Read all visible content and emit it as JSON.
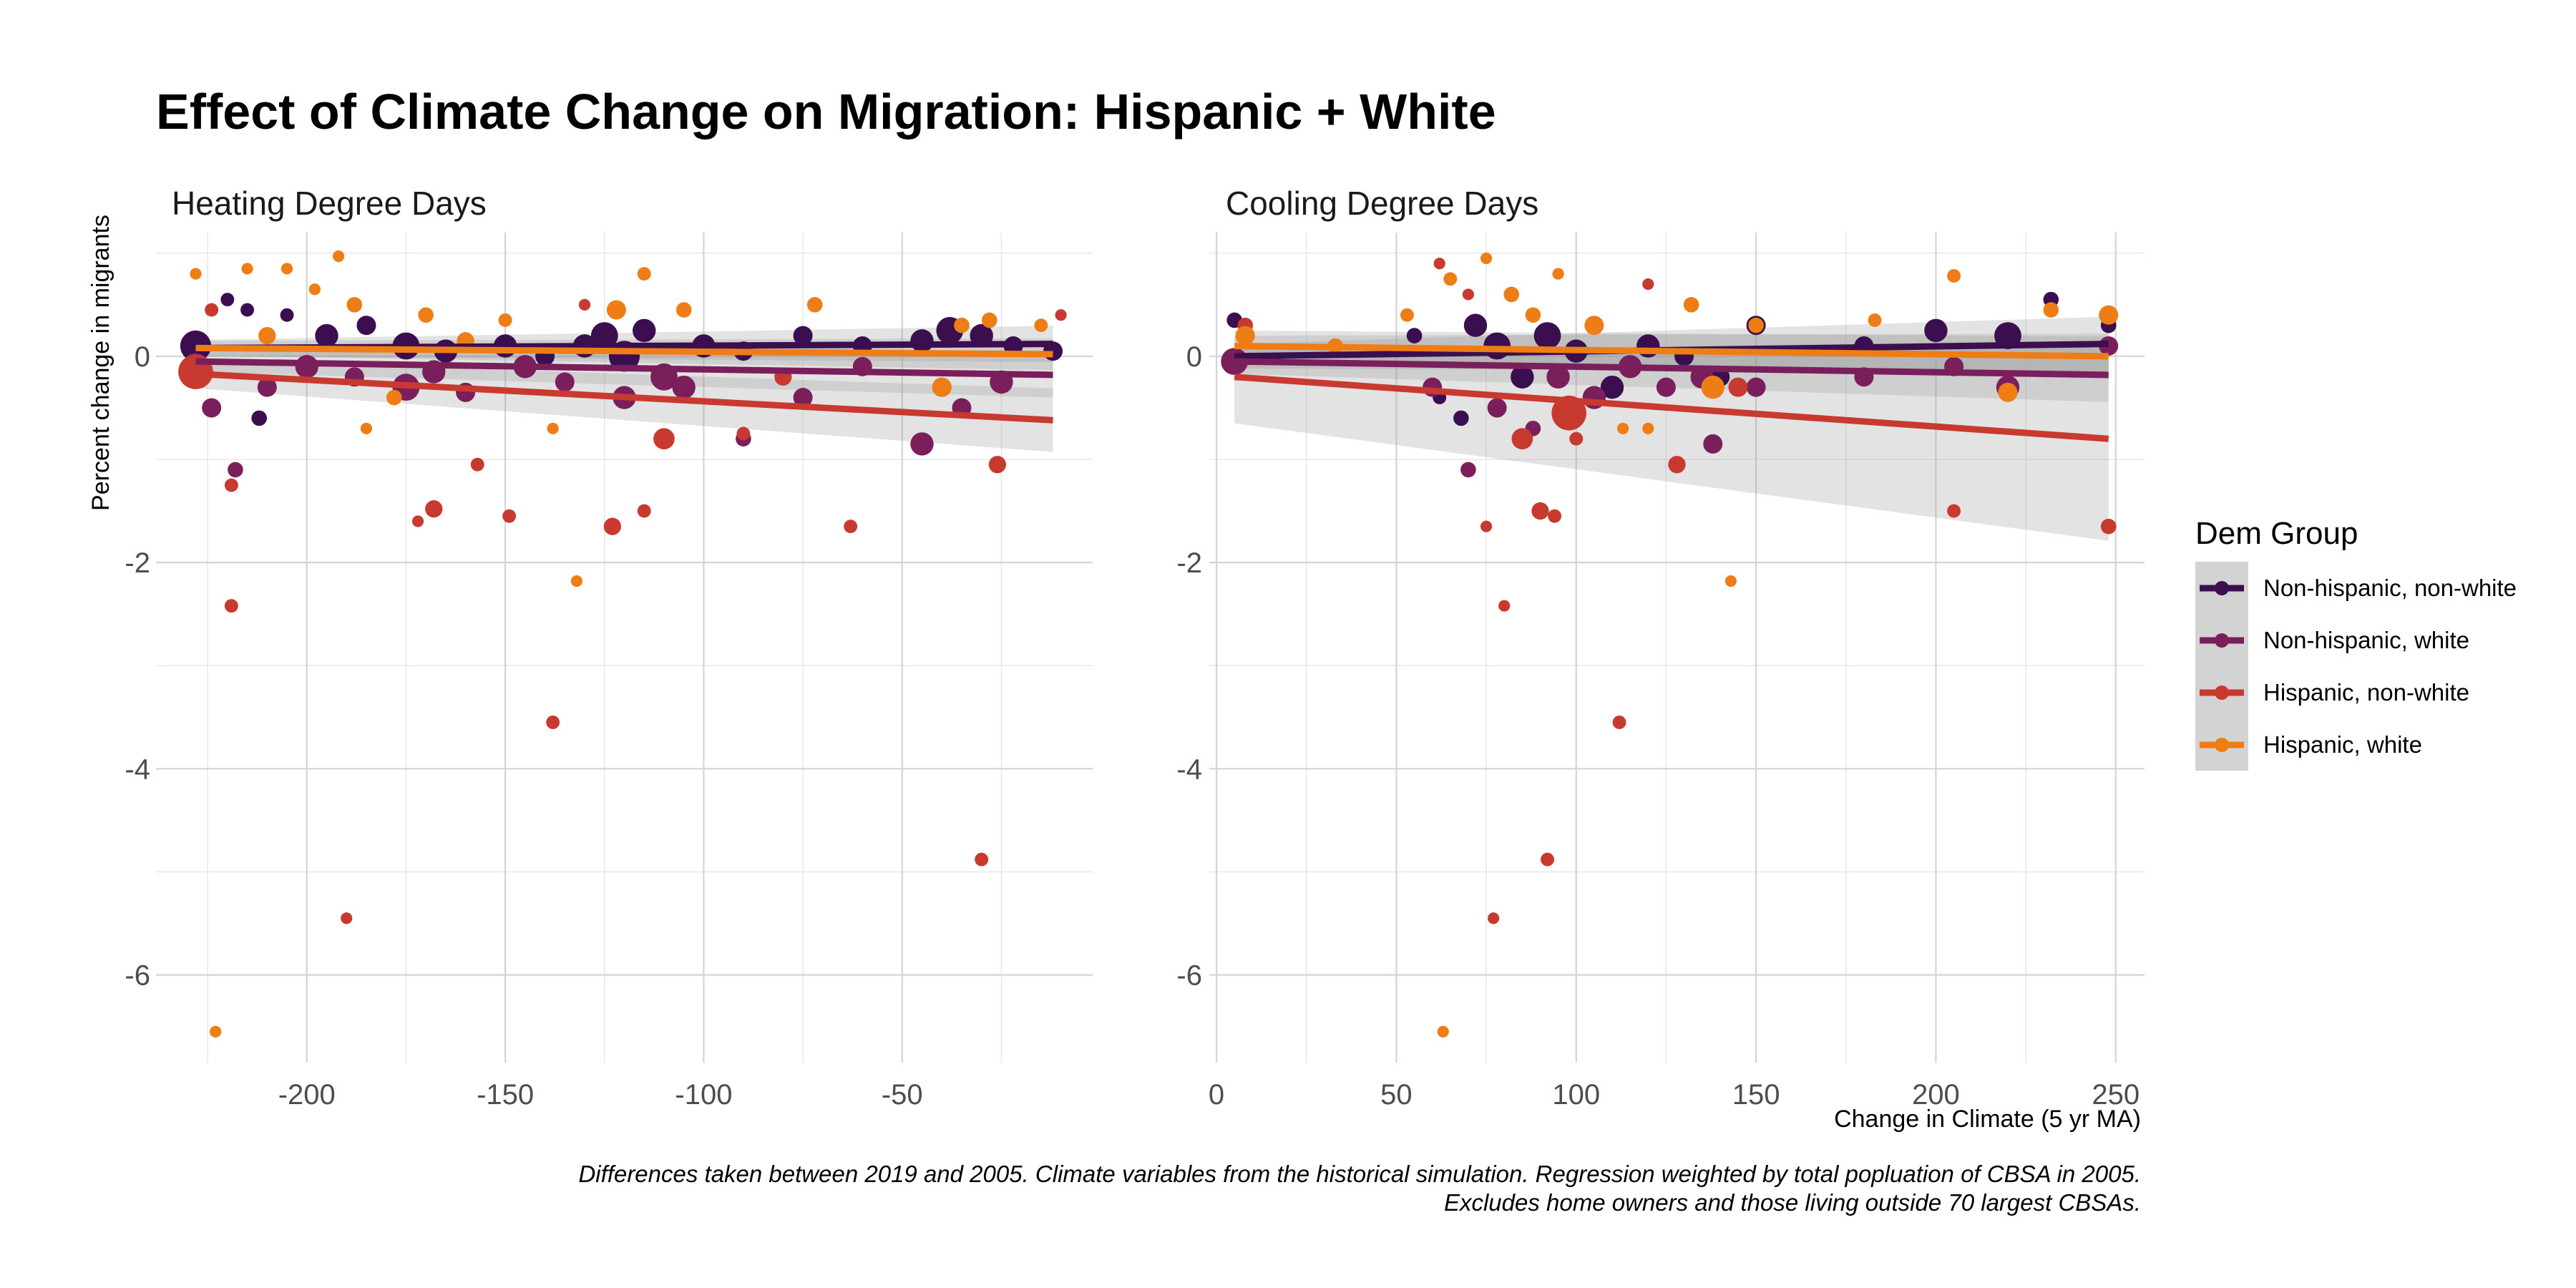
{
  "title": "Effect of Climate Change on Migration: Hispanic + White",
  "caption_lines": [
    "Differences taken between 2019 and 2005. Climate variables from the historical simulation. Regression weighted by total popluation of CBSA in 2005.",
    "Excludes home owners and those living outside 70 largest CBSAs."
  ],
  "y_axis_title": "Percent change in migrants",
  "x_axis_title": "Change in Climate (5 yr MA)",
  "legend": {
    "title": "Dem Group",
    "position": "right",
    "items": [
      {
        "label": "Non-hispanic, non-white",
        "color": "#3b0f4f"
      },
      {
        "label": "Non-hispanic, white",
        "color": "#7a1f5c"
      },
      {
        "label": "Hispanic, non-white",
        "color": "#c8392f"
      },
      {
        "label": "Hispanic, white",
        "color": "#ef7d16"
      }
    ]
  },
  "chart_data": [
    {
      "type": "scatter",
      "facet_title": "Heating Degree Days",
      "xlim": [
        -238,
        -2
      ],
      "ylim": [
        -6.85,
        1.2
      ],
      "x_ticks": [
        -200,
        -150,
        -100,
        -50
      ],
      "x_tick_labels": [
        "-200",
        "-150",
        "-100",
        "-50"
      ],
      "y_ticks": [
        0,
        -2,
        -4,
        -6
      ],
      "y_tick_labels": [
        "0",
        "-2",
        "-4",
        "-6"
      ],
      "grid": true,
      "series": [
        {
          "name": "Non-hispanic, non-white",
          "color": "#3b0f4f",
          "fit": {
            "x": [
              -228,
              -12
            ],
            "y": [
              0.08,
              0.12
            ],
            "band": 0.08
          },
          "points": [
            [
              -228,
              0.1,
              16
            ],
            [
              -220,
              0.55,
              7
            ],
            [
              -215,
              0.45,
              7
            ],
            [
              -212,
              -0.6,
              8
            ],
            [
              -205,
              0.4,
              7
            ],
            [
              -195,
              0.2,
              12
            ],
            [
              -185,
              0.3,
              10
            ],
            [
              -175,
              0.1,
              14
            ],
            [
              -165,
              0.05,
              12
            ],
            [
              -150,
              0.1,
              12
            ],
            [
              -140,
              0.0,
              10
            ],
            [
              -125,
              0.2,
              14
            ],
            [
              -115,
              0.25,
              12
            ],
            [
              -100,
              0.1,
              12
            ],
            [
              -90,
              0.05,
              10
            ],
            [
              -75,
              0.2,
              10
            ],
            [
              -60,
              0.1,
              10
            ],
            [
              -45,
              0.15,
              12
            ],
            [
              -38,
              0.25,
              14
            ],
            [
              -30,
              0.2,
              12
            ],
            [
              -22,
              0.1,
              10
            ],
            [
              -12,
              0.05,
              10
            ],
            [
              -120,
              0.0,
              16
            ],
            [
              -130,
              0.1,
              12
            ]
          ]
        },
        {
          "name": "Non-hispanic, white",
          "color": "#7a1f5c",
          "fit": {
            "x": [
              -228,
              -12
            ],
            "y": [
              -0.05,
              -0.18
            ],
            "band": 0.1
          },
          "points": [
            [
              -228,
              -0.1,
              14
            ],
            [
              -224,
              -0.5,
              10
            ],
            [
              -218,
              -1.1,
              8
            ],
            [
              -210,
              -0.3,
              10
            ],
            [
              -200,
              -0.1,
              12
            ],
            [
              -188,
              -0.2,
              10
            ],
            [
              -175,
              -0.3,
              14
            ],
            [
              -160,
              -0.35,
              10
            ],
            [
              -145,
              -0.1,
              12
            ],
            [
              -135,
              -0.25,
              10
            ],
            [
              -120,
              -0.4,
              12
            ],
            [
              -105,
              -0.3,
              12
            ],
            [
              -90,
              -0.8,
              8
            ],
            [
              -75,
              -0.4,
              10
            ],
            [
              -60,
              -0.1,
              10
            ],
            [
              -45,
              -0.85,
              12
            ],
            [
              -35,
              -0.5,
              10
            ],
            [
              -25,
              -0.25,
              12
            ],
            [
              -168,
              -0.15,
              12
            ],
            [
              -110,
              -0.2,
              14
            ]
          ]
        },
        {
          "name": "Hispanic, non-white",
          "color": "#c8392f",
          "fit": {
            "x": [
              -228,
              -12
            ],
            "y": [
              -0.17,
              -0.62
            ],
            "band": 0.14
          },
          "points": [
            [
              -228,
              -0.15,
              18
            ],
            [
              -224,
              0.45,
              7
            ],
            [
              -219,
              -1.25,
              7
            ],
            [
              -219,
              -2.42,
              7
            ],
            [
              -190,
              -5.45,
              6
            ],
            [
              -172,
              -1.6,
              6
            ],
            [
              -168,
              -1.48,
              9
            ],
            [
              -157,
              -1.05,
              7
            ],
            [
              -149,
              -1.55,
              7
            ],
            [
              -138,
              -3.55,
              7
            ],
            [
              -123,
              -1.65,
              9
            ],
            [
              -115,
              -1.5,
              7
            ],
            [
              -110,
              -0.8,
              11
            ],
            [
              -90,
              -0.75,
              7
            ],
            [
              -63,
              -1.65,
              7
            ],
            [
              -30,
              -4.88,
              7
            ],
            [
              -26,
              -1.05,
              9
            ],
            [
              -10,
              0.4,
              6
            ],
            [
              -40,
              -0.3,
              10
            ],
            [
              -80,
              -0.2,
              9
            ],
            [
              -130,
              0.5,
              6
            ]
          ]
        },
        {
          "name": "Hispanic, white",
          "color": "#ef7d16",
          "fit": {
            "x": [
              -228,
              -12
            ],
            "y": [
              0.08,
              0.02
            ],
            "band": 0.07
          },
          "points": [
            [
              -228,
              0.8,
              6
            ],
            [
              -223,
              -6.55,
              6
            ],
            [
              -215,
              0.85,
              6
            ],
            [
              -205,
              0.85,
              6
            ],
            [
              -198,
              0.65,
              6
            ],
            [
              -192,
              0.97,
              6
            ],
            [
              -188,
              0.5,
              8
            ],
            [
              -185,
              -0.7,
              6
            ],
            [
              -178,
              -0.4,
              8
            ],
            [
              -170,
              0.4,
              8
            ],
            [
              -150,
              0.35,
              7
            ],
            [
              -138,
              -0.7,
              6
            ],
            [
              -132,
              -2.18,
              6
            ],
            [
              -122,
              0.45,
              10
            ],
            [
              -115,
              0.8,
              7
            ],
            [
              -105,
              0.45,
              8
            ],
            [
              -72,
              0.5,
              8
            ],
            [
              -40,
              -0.3,
              10
            ],
            [
              -35,
              0.3,
              8
            ],
            [
              -28,
              0.35,
              8
            ],
            [
              -15,
              0.3,
              7
            ],
            [
              -210,
              0.2,
              9
            ],
            [
              -160,
              0.15,
              9
            ]
          ]
        }
      ]
    },
    {
      "type": "scatter",
      "facet_title": "Cooling Degree Days",
      "xlim": [
        -2,
        258
      ],
      "ylim": [
        -6.85,
        1.2
      ],
      "x_ticks": [
        0,
        50,
        100,
        150,
        200,
        250
      ],
      "x_tick_labels": [
        "0",
        "50",
        "100",
        "150",
        "200",
        "250"
      ],
      "y_ticks": [
        0,
        -2,
        -4,
        -6
      ],
      "y_tick_labels": [
        "0",
        "-2",
        "-4",
        "-6"
      ],
      "grid": true,
      "series": [
        {
          "name": "Non-hispanic, non-white",
          "color": "#3b0f4f",
          "fit": {
            "x": [
              5,
              248
            ],
            "y": [
              0.0,
              0.12
            ],
            "band": 0.12
          },
          "points": [
            [
              5,
              0.35,
              8
            ],
            [
              55,
              0.2,
              8
            ],
            [
              62,
              -0.4,
              7
            ],
            [
              68,
              -0.6,
              8
            ],
            [
              72,
              0.3,
              12
            ],
            [
              78,
              0.1,
              14
            ],
            [
              85,
              -0.2,
              12
            ],
            [
              92,
              0.2,
              14
            ],
            [
              100,
              0.05,
              12
            ],
            [
              110,
              -0.3,
              12
            ],
            [
              120,
              0.1,
              12
            ],
            [
              130,
              0.0,
              10
            ],
            [
              140,
              -0.2,
              10
            ],
            [
              150,
              0.3,
              10
            ],
            [
              180,
              0.1,
              10
            ],
            [
              200,
              0.25,
              12
            ],
            [
              220,
              0.2,
              14
            ],
            [
              232,
              0.55,
              8
            ],
            [
              248,
              0.3,
              8
            ]
          ]
        },
        {
          "name": "Non-hispanic, white",
          "color": "#7a1f5c",
          "fit": {
            "x": [
              5,
              248
            ],
            "y": [
              -0.05,
              -0.18
            ],
            "band": 0.12
          },
          "points": [
            [
              5,
              -0.05,
              14
            ],
            [
              60,
              -0.3,
              10
            ],
            [
              70,
              -1.1,
              8
            ],
            [
              78,
              -0.5,
              10
            ],
            [
              88,
              -0.7,
              8
            ],
            [
              95,
              -0.2,
              12
            ],
            [
              105,
              -0.4,
              12
            ],
            [
              115,
              -0.1,
              12
            ],
            [
              125,
              -0.3,
              10
            ],
            [
              135,
              -0.2,
              12
            ],
            [
              138,
              -0.85,
              10
            ],
            [
              150,
              -0.3,
              10
            ],
            [
              180,
              -0.2,
              10
            ],
            [
              205,
              -0.1,
              10
            ],
            [
              220,
              -0.3,
              12
            ],
            [
              248,
              0.1,
              10
            ]
          ]
        },
        {
          "name": "Hispanic, non-white",
          "color": "#c8392f",
          "fit": {
            "x": [
              5,
              248
            ],
            "y": [
              -0.2,
              -0.8
            ],
            "band": 0.45
          },
          "points": [
            [
              8,
              0.3,
              8
            ],
            [
              62,
              0.9,
              6
            ],
            [
              75,
              -1.65,
              6
            ],
            [
              77,
              -5.45,
              6
            ],
            [
              80,
              -2.42,
              6
            ],
            [
              85,
              -0.8,
              11
            ],
            [
              90,
              -1.5,
              9
            ],
            [
              92,
              -4.88,
              7
            ],
            [
              94,
              -1.55,
              7
            ],
            [
              98,
              -0.55,
              18
            ],
            [
              100,
              -0.8,
              7
            ],
            [
              112,
              -3.55,
              7
            ],
            [
              128,
              -1.05,
              9
            ],
            [
              145,
              -0.3,
              10
            ],
            [
              205,
              -1.5,
              7
            ],
            [
              248,
              -1.65,
              8
            ],
            [
              70,
              0.6,
              6
            ],
            [
              120,
              0.7,
              6
            ]
          ]
        },
        {
          "name": "Hispanic, white",
          "color": "#ef7d16",
          "fit": {
            "x": [
              5,
              248
            ],
            "y": [
              0.1,
              0.0
            ],
            "band": 0.1
          },
          "points": [
            [
              8,
              0.2,
              10
            ],
            [
              33,
              0.1,
              8
            ],
            [
              53,
              0.4,
              7
            ],
            [
              63,
              -6.55,
              6
            ],
            [
              65,
              0.75,
              7
            ],
            [
              75,
              0.95,
              6
            ],
            [
              82,
              0.6,
              8
            ],
            [
              88,
              0.4,
              8
            ],
            [
              95,
              0.8,
              6
            ],
            [
              105,
              0.3,
              10
            ],
            [
              113,
              -0.7,
              6
            ],
            [
              120,
              -0.7,
              6
            ],
            [
              132,
              0.5,
              8
            ],
            [
              138,
              -0.3,
              12
            ],
            [
              143,
              -2.18,
              6
            ],
            [
              150,
              0.3,
              8
            ],
            [
              183,
              0.35,
              7
            ],
            [
              205,
              0.78,
              7
            ],
            [
              220,
              -0.35,
              10
            ],
            [
              232,
              0.45,
              8
            ],
            [
              248,
              0.4,
              10
            ]
          ]
        }
      ]
    }
  ]
}
